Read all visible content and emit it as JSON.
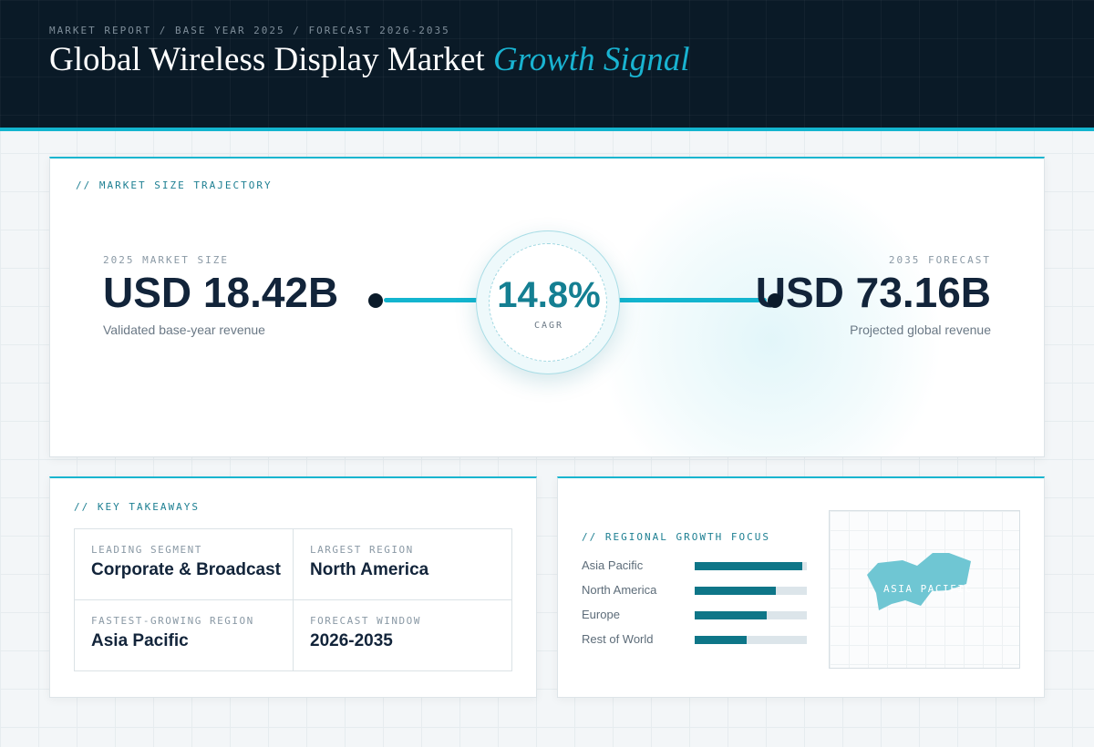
{
  "header": {
    "breadcrumb": "MARKET REPORT / BASE YEAR 2025 / FORECAST 2026-2035",
    "title_main": "Global Wireless Display Market ",
    "title_accent": "Growth Signal"
  },
  "trajectory": {
    "section_label": "// MARKET SIZE TRAJECTORY",
    "start": {
      "label": "2025 MARKET SIZE",
      "value": "USD 18.42B",
      "description": "Validated base-year revenue"
    },
    "end": {
      "label": "2035 FORECAST",
      "value": "USD 73.16B",
      "description": "Projected global revenue"
    },
    "cagr": {
      "value": "14.8%",
      "label": "CAGR"
    }
  },
  "takeaways": {
    "section_label": "// KEY TAKEAWAYS",
    "items": [
      {
        "label": "LEADING SEGMENT",
        "value": "Corporate & Broadcast"
      },
      {
        "label": "LARGEST REGION",
        "value": "North America"
      },
      {
        "label": "FASTEST-GROWING REGION",
        "value": "Asia Pacific"
      },
      {
        "label": "FORECAST WINDOW",
        "value": "2026-2035"
      }
    ]
  },
  "regional": {
    "section_label": "// REGIONAL GROWTH FOCUS",
    "map_label": "ASIA PACIFIC"
  },
  "chart_data": {
    "type": "bar",
    "orientation": "horizontal",
    "title": "// REGIONAL GROWTH FOCUS",
    "categories": [
      "Asia Pacific",
      "North America",
      "Europe",
      "Rest of World"
    ],
    "values": [
      96,
      72,
      64,
      46
    ],
    "ylim": [
      0,
      100
    ],
    "grid": false,
    "colors": {
      "fill": "#0e7688",
      "track": "#dce5ea"
    }
  },
  "colors": {
    "accent": "#13b5cf",
    "header_bg": "#0a1a27",
    "dark_text": "#12243a",
    "teal": "#147f92",
    "map_shape": "#6fc6d3"
  }
}
